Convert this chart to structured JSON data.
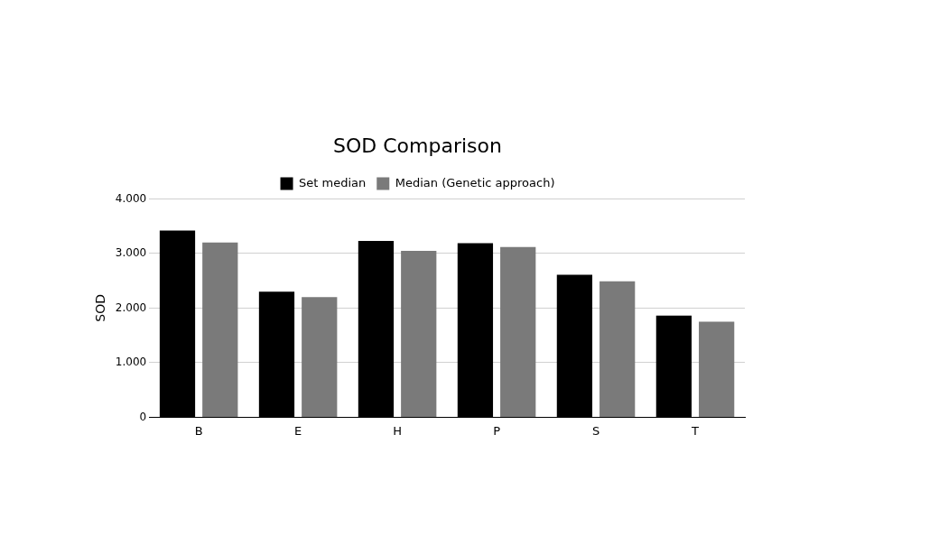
{
  "chart_data": {
    "type": "bar",
    "title": "SOD Comparison",
    "ylabel": "SOD",
    "categories": [
      "B",
      "E",
      "H",
      "P",
      "S",
      "T"
    ],
    "series": [
      {
        "name": "Set median",
        "color": "#000000",
        "values": [
          3420,
          2300,
          3230,
          3190,
          2610,
          1860
        ]
      },
      {
        "name": "Median (Genetic approach)",
        "color": "#7a7a7a",
        "values": [
          3200,
          2200,
          3050,
          3120,
          2490,
          1750
        ]
      }
    ],
    "ylim": [
      0,
      4000
    ],
    "yticks": [
      0,
      {
        "value": 1000,
        "label": "1.000"
      },
      {
        "value": 2000,
        "label": "2.000"
      },
      {
        "value": 3000,
        "label": "3.000"
      },
      {
        "value": 4000,
        "label": "4.000"
      }
    ],
    "grid": "y",
    "legend": "top"
  }
}
